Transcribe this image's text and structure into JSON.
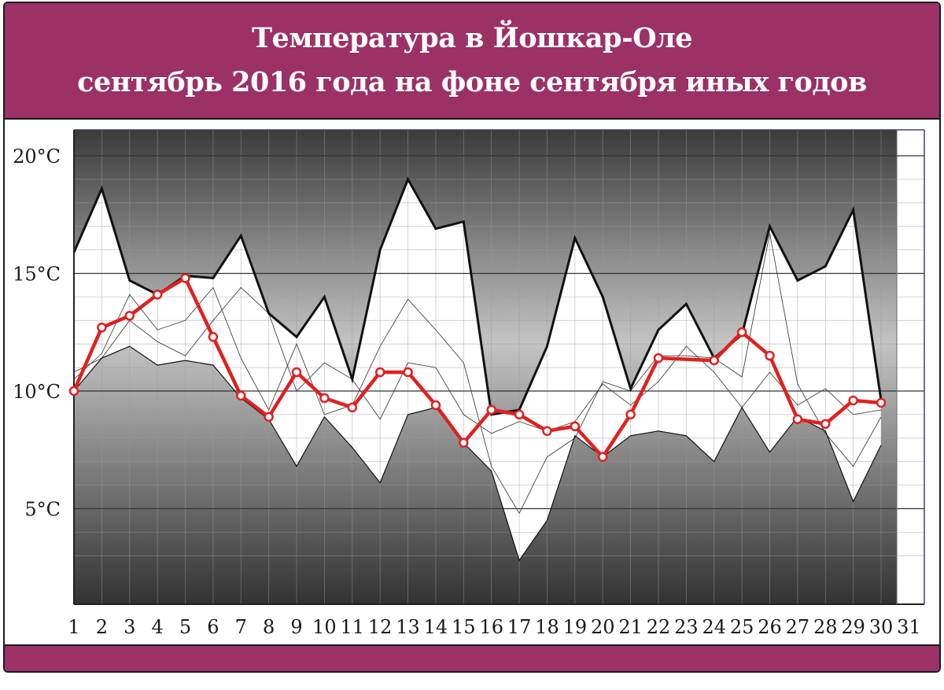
{
  "title_lines": [
    "Температура в Йошкар-Оле",
    "сентябрь 2016 года на фоне сентября иных годов"
  ],
  "colors": {
    "band": "#9b3165",
    "series_2016": "#e02020",
    "background_dark": "#3a3a3a",
    "background_light": "#bfbfbf"
  },
  "chart_data": {
    "type": "line",
    "x": [
      1,
      2,
      3,
      4,
      5,
      6,
      7,
      8,
      9,
      10,
      11,
      12,
      13,
      14,
      15,
      16,
      17,
      18,
      19,
      20,
      21,
      22,
      23,
      24,
      25,
      26,
      27,
      28,
      29,
      30
    ],
    "xticks": [
      "1",
      "2",
      "3",
      "4",
      "5",
      "6",
      "7",
      "8",
      "9",
      "10",
      "11",
      "12",
      "13",
      "14",
      "15",
      "16",
      "17",
      "18",
      "19",
      "20",
      "21",
      "22",
      "23",
      "24",
      "25",
      "26",
      "27",
      "28",
      "29",
      "30",
      "31"
    ],
    "yticks": [
      "5°C",
      "10°C",
      "15°C",
      "20°C"
    ],
    "ylim": [
      1,
      21
    ],
    "xlim": [
      1,
      31
    ],
    "grid": true,
    "max": [
      15.9,
      18.6,
      14.7,
      14.1,
      14.9,
      14.8,
      16.6,
      13.3,
      12.3,
      14.0,
      10.5,
      16.0,
      19.0,
      16.9,
      17.2,
      9.0,
      9.2,
      11.9,
      16.5,
      14.0,
      10.1,
      12.6,
      13.7,
      11.4,
      12.4,
      17.0,
      14.7,
      15.3,
      17.7,
      9.6
    ],
    "min": [
      10.0,
      11.4,
      11.9,
      11.1,
      11.3,
      11.1,
      9.7,
      8.8,
      6.8,
      8.9,
      7.6,
      6.1,
      9.0,
      9.3,
      7.8,
      6.6,
      2.8,
      4.5,
      8.1,
      7.2,
      8.1,
      8.3,
      8.1,
      7.0,
      9.3,
      7.4,
      8.9,
      8.3,
      5.3,
      7.7
    ],
    "other_years": [
      [
        10.5,
        11.6,
        14.1,
        12.6,
        13.0,
        14.4,
        11.4,
        9.2,
        12.0,
        9.0,
        9.4,
        11.9,
        13.9,
        12.6,
        11.2,
        6.8,
        4.8,
        7.2,
        8.0,
        10.4,
        10.0,
        11.5,
        11.5,
        11.4,
        10.6,
        16.7,
        10.3,
        8.2,
        6.8,
        8.9
      ],
      [
        10.8,
        11.4,
        13.0,
        12.1,
        11.5,
        13.0,
        14.4,
        13.3,
        10.0,
        11.2,
        10.5,
        8.8,
        11.2,
        11.0,
        9.0,
        8.2,
        8.7,
        8.3,
        8.7,
        10.3,
        9.4,
        10.4,
        11.9,
        10.8,
        9.3,
        10.8,
        9.4,
        10.1,
        9.0,
        9.2
      ]
    ],
    "series": [
      {
        "name": "2016",
        "values": [
          10.0,
          12.7,
          13.2,
          14.1,
          14.8,
          12.3,
          9.8,
          8.9,
          10.8,
          9.7,
          9.3,
          10.8,
          10.8,
          9.4,
          7.8,
          9.2,
          9.0,
          8.3,
          8.5,
          7.2,
          9.0,
          11.4,
          null,
          11.3,
          12.5,
          11.5,
          8.8,
          8.6,
          9.6,
          9.5
        ]
      }
    ]
  }
}
